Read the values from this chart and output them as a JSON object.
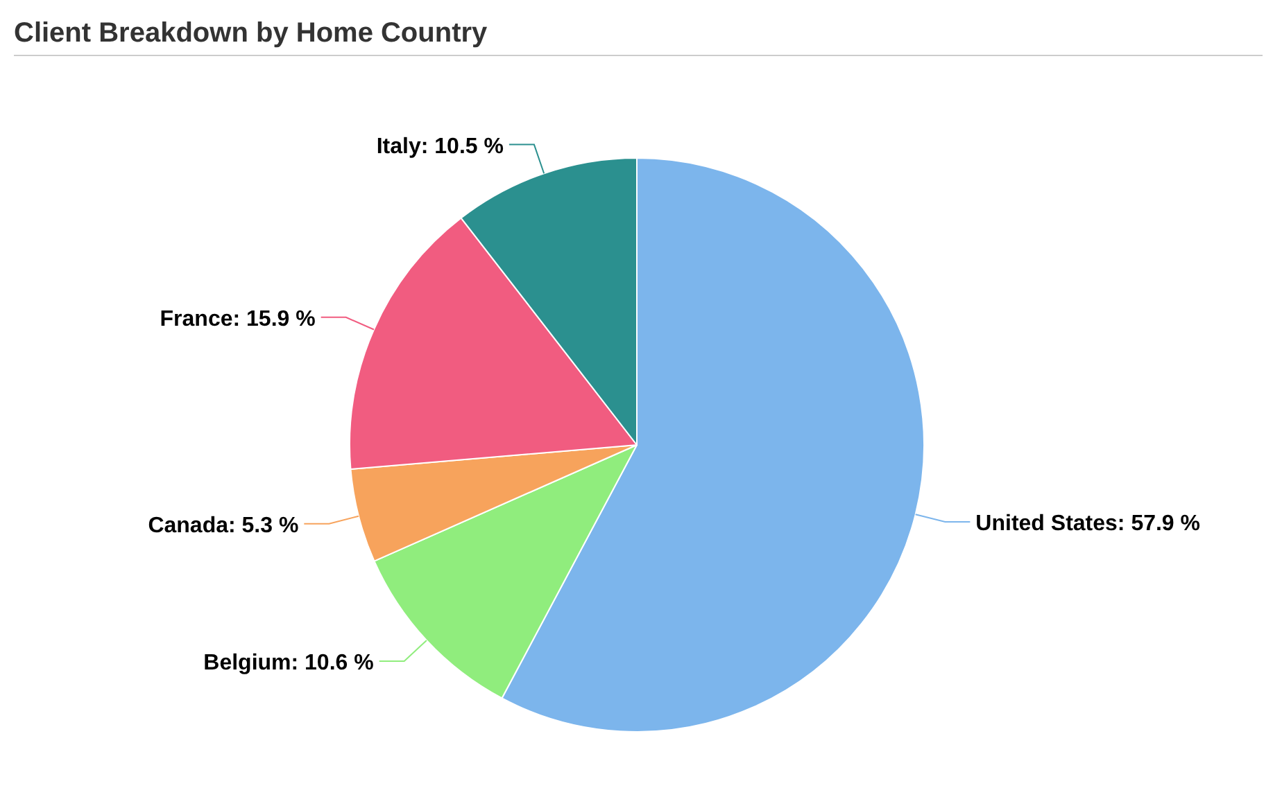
{
  "chart_data": {
    "type": "pie",
    "title": "Client Breakdown by Home Country",
    "categories": [
      "United States",
      "Belgium",
      "Canada",
      "France",
      "Italy"
    ],
    "values": [
      57.9,
      10.6,
      5.3,
      15.9,
      10.5
    ],
    "value_labels": [
      "57.9 %",
      "10.6 %",
      "5.3 %",
      "15.9 %",
      "10.5 %"
    ],
    "colors": [
      "#7cb5ec",
      "#90ed7d",
      "#f7a35c",
      "#f15c80",
      "#2b908f"
    ]
  }
}
